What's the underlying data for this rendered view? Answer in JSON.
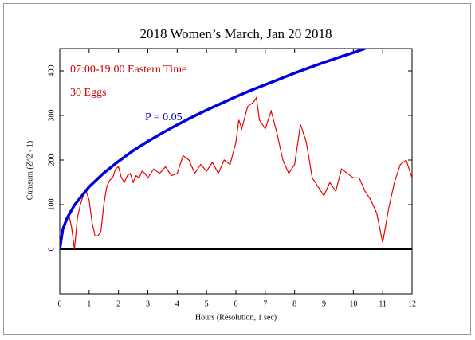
{
  "chart_data": {
    "type": "line",
    "title": "2018 Women’s March, Jan 20 2018",
    "annotations": [
      "07:00-19:00 Eastern Time",
      "30 Eggs",
      "P = 0.05"
    ],
    "xlabel": "Hours (Resolution, 1 sec)",
    "ylabel": "Cumsum (Z^2 - 1)",
    "xlim": [
      0,
      12
    ],
    "xticks": [
      0,
      1,
      2,
      3,
      4,
      5,
      6,
      7,
      8,
      9,
      10,
      11,
      12
    ],
    "ylim": [
      -100,
      450
    ],
    "yticks": [
      0,
      100,
      200,
      300,
      400
    ],
    "reference_line": 0,
    "series": [
      {
        "color": "#ee0000",
        "x": [
          0,
          0.1,
          0.2,
          0.3,
          0.4,
          0.5,
          0.6,
          0.7,
          0.8,
          0.9,
          1.0,
          1.1,
          1.2,
          1.3,
          1.4,
          1.5,
          1.6,
          1.7,
          1.8,
          1.9,
          2.0,
          2.1,
          2.2,
          2.3,
          2.4,
          2.5,
          2.6,
          2.7,
          2.8,
          2.9,
          3.0,
          3.2,
          3.4,
          3.6,
          3.8,
          4.0,
          4.2,
          4.4,
          4.6,
          4.8,
          5.0,
          5.2,
          5.4,
          5.6,
          5.8,
          6.0,
          6.1,
          6.2,
          6.4,
          6.6,
          6.7,
          6.8,
          7.0,
          7.2,
          7.4,
          7.6,
          7.8,
          8.0,
          8.2,
          8.4,
          8.6,
          8.8,
          9.0,
          9.2,
          9.4,
          9.6,
          9.8,
          10.0,
          10.2,
          10.4,
          10.6,
          10.8,
          11.0,
          11.2,
          11.4,
          11.6,
          11.8,
          12.0
        ],
        "values": [
          0,
          50,
          60,
          80,
          50,
          0,
          70,
          100,
          120,
          130,
          110,
          60,
          30,
          30,
          40,
          100,
          140,
          155,
          160,
          180,
          185,
          160,
          150,
          165,
          170,
          150,
          165,
          160,
          175,
          170,
          160,
          180,
          170,
          185,
          165,
          170,
          210,
          200,
          170,
          190,
          175,
          195,
          170,
          200,
          190,
          240,
          290,
          270,
          320,
          330,
          340,
          290,
          270,
          310,
          260,
          200,
          170,
          190,
          280,
          240,
          160,
          140,
          120,
          150,
          130,
          180,
          170,
          160,
          160,
          130,
          110,
          80,
          15,
          90,
          150,
          190,
          200,
          160
        ]
      },
      {
        "color": "#0000dd",
        "x": [
          0,
          0.1,
          0.25,
          0.5,
          1,
          1.5,
          2,
          2.5,
          3,
          3.5,
          4,
          4.5,
          5,
          5.5,
          6,
          6.5,
          7,
          7.5,
          8,
          8.5,
          9,
          9.5,
          10,
          10.4
        ],
        "values": [
          0,
          44,
          70,
          99,
          140,
          171,
          197,
          221,
          242,
          261,
          279,
          296,
          312,
          327,
          342,
          356,
          369,
          382,
          395,
          407,
          419,
          430,
          441,
          450
        ]
      }
    ]
  }
}
